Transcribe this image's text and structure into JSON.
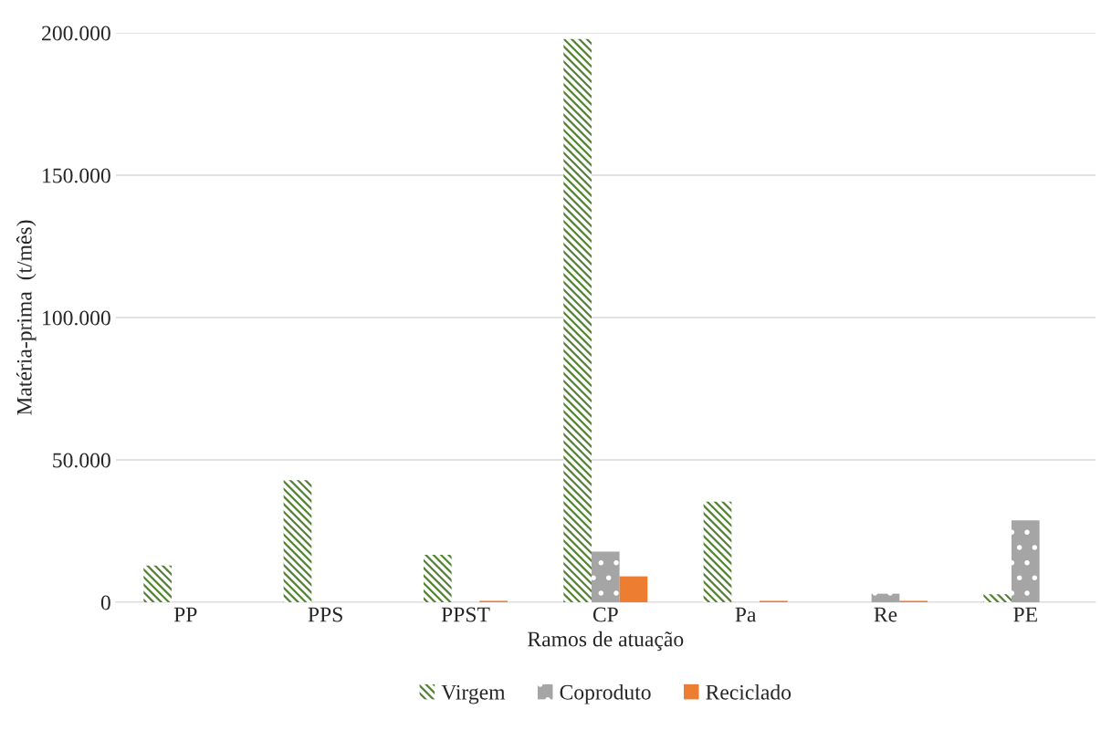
{
  "chart_data": {
    "type": "bar",
    "xlabel": "Ramos de atuação",
    "ylabel": "Matéria-prima  (t/mês)",
    "categories": [
      "PP",
      "PPS",
      "PPST",
      "CP",
      "Pa",
      "Re",
      "PE"
    ],
    "series": [
      {
        "name": "Virgem",
        "color": "#548235",
        "values": [
          12900,
          42900,
          16700,
          197800,
          35300,
          null,
          2800
        ]
      },
      {
        "name": "Coproduto",
        "color": "#a5a5a5",
        "values": [
          null,
          null,
          null,
          17800,
          null,
          3000,
          28800
        ]
      },
      {
        "name": "Reciclado",
        "color": "#ed7d31",
        "values": [
          null,
          null,
          500,
          9100,
          500,
          500,
          null
        ]
      }
    ],
    "ylim": [
      0,
      200000
    ],
    "yticks": [
      {
        "value": 0,
        "label": "0"
      },
      {
        "value": 50000,
        "label": "50.000"
      },
      {
        "value": 100000,
        "label": "100.000"
      },
      {
        "value": 150000,
        "label": "150.000"
      },
      {
        "value": 200000,
        "label": "200.000"
      }
    ],
    "grid": "y",
    "legend": "bottom"
  }
}
